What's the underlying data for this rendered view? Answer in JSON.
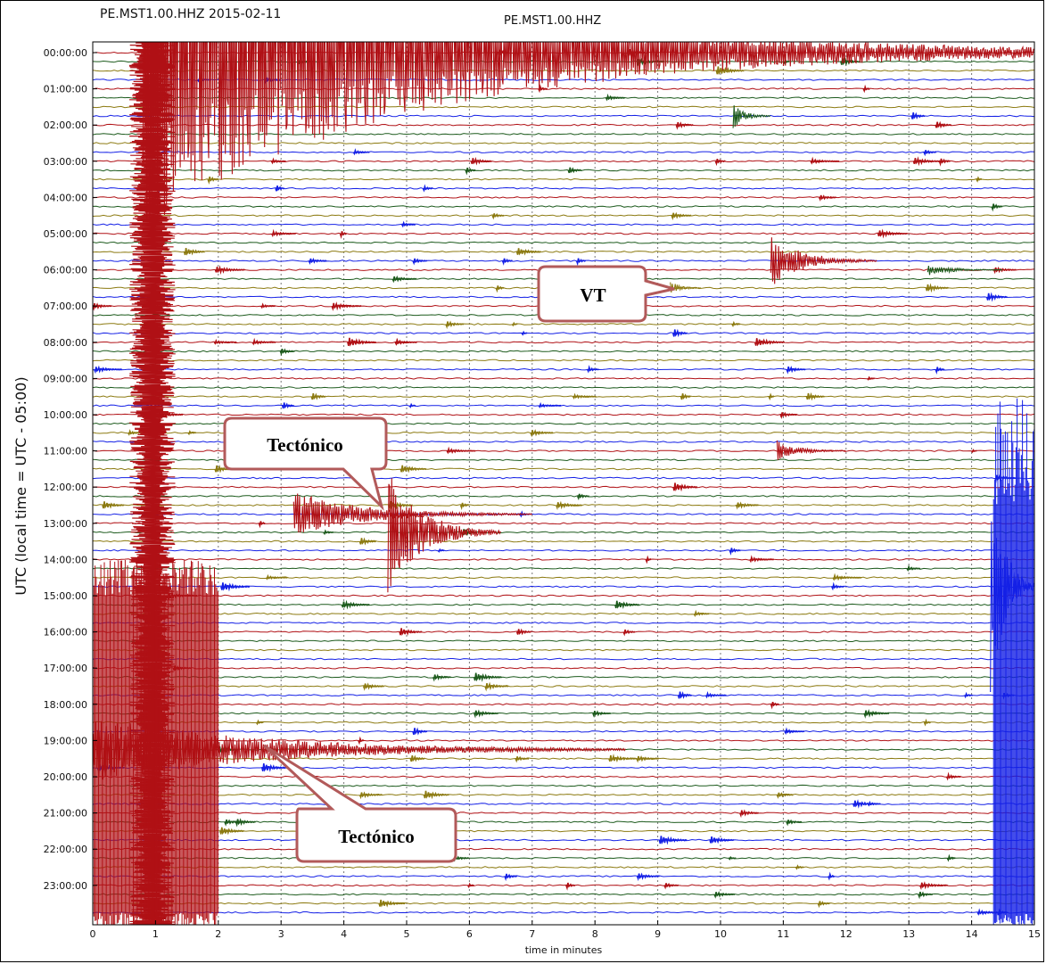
{
  "header": {
    "left_title": "PE.MST1.00.HHZ 2015-02-11",
    "center_title": "PE.MST1.00.HHZ"
  },
  "chart_data": {
    "type": "line",
    "title": "PE.MST1.00.HHZ",
    "subtitle": "PE.MST1.00.HHZ 2015-02-11",
    "xlabel": "time in minutes",
    "ylabel": "UTC (local time = UTC - 05:00)",
    "xlim": [
      0,
      15
    ],
    "x_ticks": [
      "0",
      "1",
      "2",
      "3",
      "4",
      "5",
      "6",
      "7",
      "8",
      "9",
      "10",
      "11",
      "12",
      "13",
      "14",
      "15"
    ],
    "y_ticks": [
      "00:00:00",
      "01:00:00",
      "02:00:00",
      "03:00:00",
      "04:00:00",
      "05:00:00",
      "06:00:00",
      "07:00:00",
      "08:00:00",
      "09:00:00",
      "10:00:00",
      "11:00:00",
      "12:00:00",
      "13:00:00",
      "14:00:00",
      "15:00:00",
      "16:00:00",
      "17:00:00",
      "18:00:00",
      "19:00:00",
      "20:00:00",
      "21:00:00",
      "22:00:00",
      "23:00:00"
    ],
    "trace_interval_minutes": 15,
    "trace_colors": [
      "#b01015",
      "#1c5a1c",
      "#8c7a10",
      "#1420e6"
    ],
    "grid": true,
    "annotations": [
      {
        "label": "VT",
        "trace_hour": 6.5,
        "minute": 9.3
      },
      {
        "label": "Tectónico",
        "trace_hour": 12.75,
        "minute": 4.6
      },
      {
        "label": "Tectónico",
        "trace_hour": 19.0,
        "minute": 2.7
      }
    ],
    "events": [
      {
        "trace_index": 0,
        "minute": 0.8,
        "end_minute": 15,
        "amplitude": 200,
        "color_index": 0,
        "note": "large tectonic event starting near 00:00"
      },
      {
        "trace_index": 51,
        "minute": 3.2,
        "end_minute": 7,
        "amplitude": 25,
        "color_index": 0
      },
      {
        "trace_index": 53,
        "minute": 4.7,
        "end_minute": 6.5,
        "amplitude": 70,
        "color_index": 0
      },
      {
        "trace_index": 23,
        "minute": 10.8,
        "end_minute": 12.5,
        "amplitude": 30,
        "color_index": 0
      },
      {
        "trace_index": 44,
        "minute": 10.9,
        "end_minute": 12,
        "amplitude": 12,
        "color_index": 0
      },
      {
        "trace_index": 26,
        "minute": 9.2,
        "end_minute": 9.7,
        "amplitude": 8,
        "color_index": 2
      },
      {
        "trace_index": 7,
        "minute": 10.2,
        "end_minute": 10.8,
        "amplitude": 15,
        "color_index": 1
      },
      {
        "trace_index": 24,
        "minute": 13.3,
        "end_minute": 14.5,
        "amplitude": 7,
        "color_index": 1
      },
      {
        "trace_index": 59,
        "minute": 14.3,
        "end_minute": 15,
        "amplitude": 140,
        "color_index": 3,
        "note": "large event at end of ~14:45 trace"
      },
      {
        "trace_index": 77,
        "minute": 0,
        "end_minute": 8.5,
        "amplitude": 40,
        "color_index": 0,
        "note": "long tectonic coda near 19:00"
      }
    ]
  },
  "callouts": {
    "vt": "VT",
    "tect1": "Tectónico",
    "tect2": "Tectónico"
  }
}
